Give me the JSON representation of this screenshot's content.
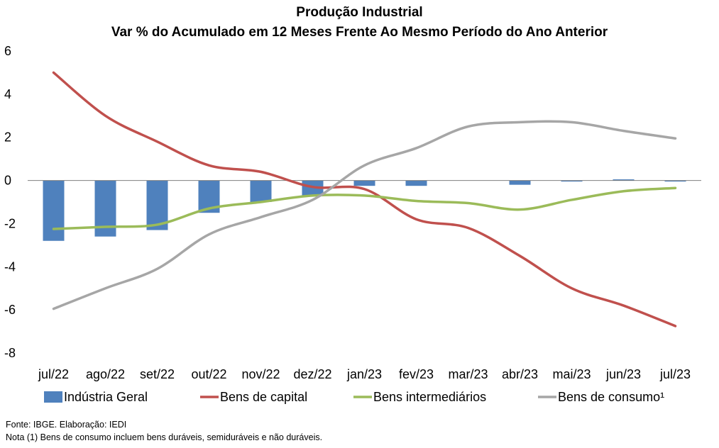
{
  "chart_data": {
    "type": "bar+line",
    "title": "Produção Industrial",
    "subtitle": "Var % do Acumulado em 12 Meses Frente Ao Mesmo Período do Ano Anterior",
    "categories": [
      "jul/22",
      "ago/22",
      "set/22",
      "out/22",
      "nov/22",
      "dez/22",
      "jan/23",
      "fev/23",
      "mar/23",
      "abr/23",
      "mai/23",
      "jun/23",
      "jul/23"
    ],
    "ylim": [
      -8,
      6
    ],
    "yticks": [
      "6",
      "4",
      "2",
      "0",
      "-2",
      "-4",
      "-6",
      "-8"
    ],
    "grid": false,
    "legend_position": "bottom",
    "series": [
      {
        "name": "Indústria Geral",
        "kind": "bar",
        "color": "#4F81BD",
        "values": [
          -2.8,
          -2.6,
          -2.3,
          -1.5,
          -1.0,
          -0.7,
          -0.25,
          -0.25,
          0.0,
          -0.2,
          -0.05,
          0.05,
          -0.05
        ]
      },
      {
        "name": "Bens de capital",
        "kind": "line",
        "color": "#C0504D",
        "values": [
          5.0,
          3.0,
          1.8,
          0.7,
          0.4,
          -0.3,
          -0.4,
          -1.8,
          -2.2,
          -3.5,
          -5.0,
          -5.8,
          -6.75
        ]
      },
      {
        "name": "Bens intermediários",
        "kind": "line",
        "color": "#9BBB59",
        "values": [
          -2.25,
          -2.15,
          -2.05,
          -1.3,
          -1.0,
          -0.7,
          -0.7,
          -0.95,
          -1.05,
          -1.35,
          -0.9,
          -0.5,
          -0.35
        ]
      },
      {
        "name": "Bens de consumo¹",
        "kind": "line",
        "color": "#A6A6A6",
        "values": [
          -5.95,
          -5.0,
          -4.1,
          -2.5,
          -1.7,
          -0.9,
          0.7,
          1.5,
          2.5,
          2.7,
          2.7,
          2.3,
          1.95
        ]
      }
    ]
  },
  "footer": {
    "source": "Fonte: IBGE. Elaboração: IEDI",
    "note": "Nota (1) Bens de consumo incluem bens duráveis, semiduráveis e não duráveis."
  }
}
